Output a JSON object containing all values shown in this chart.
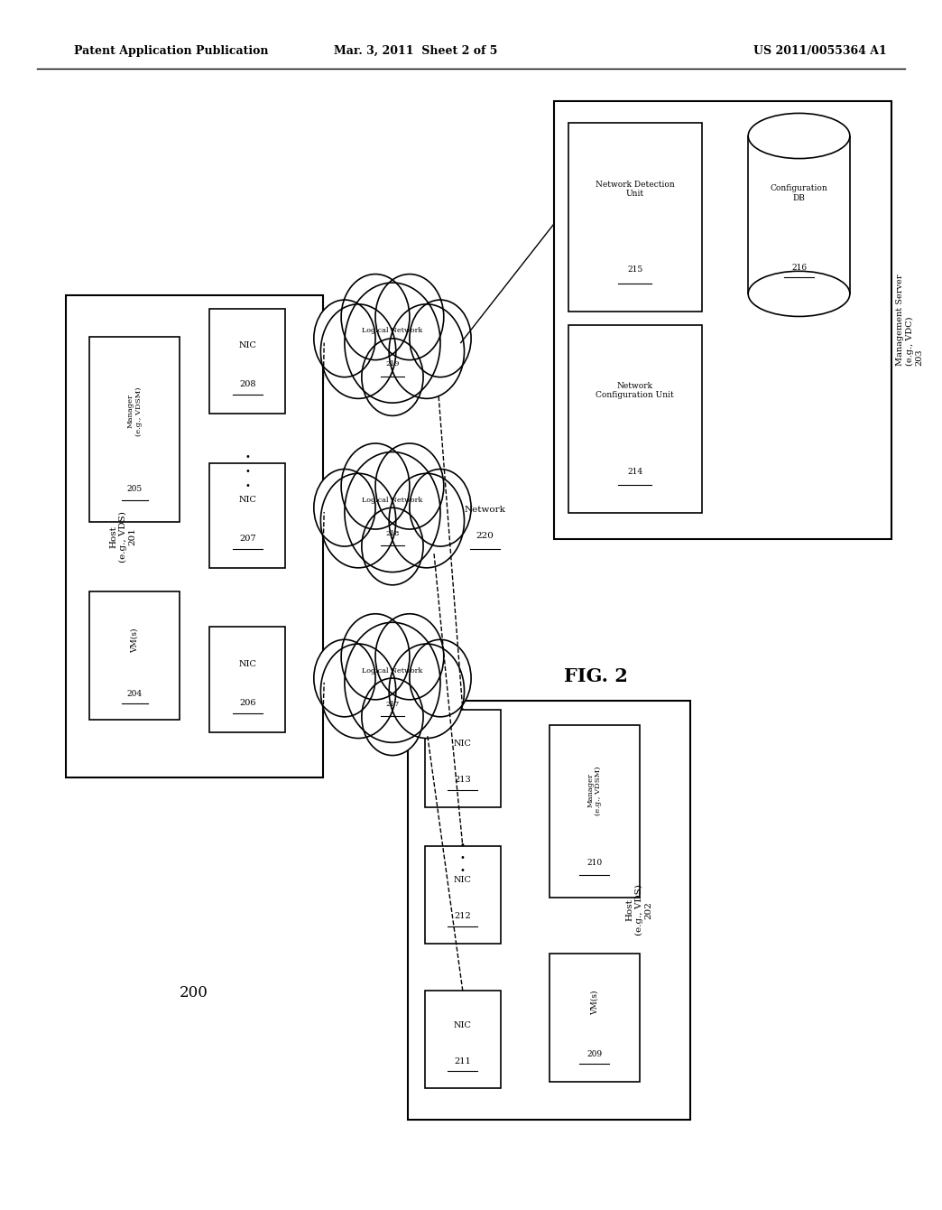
{
  "bg_color": "#ffffff",
  "header_left": "Patent Application Publication",
  "header_mid": "Mar. 3, 2011  Sheet 2 of 5",
  "header_right": "US 2011/0055364 A1",
  "fig_label": "FIG. 2",
  "fig_number": "200"
}
